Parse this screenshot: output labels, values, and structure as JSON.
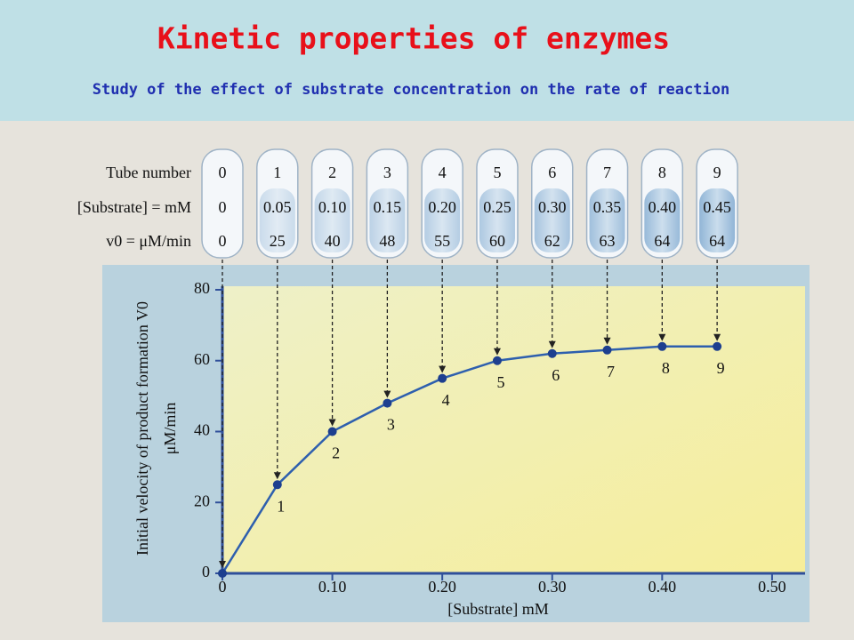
{
  "title": "Kinetic properties of enzymes",
  "subtitle": "Study of the effect of substrate concentration on the rate of reaction",
  "table": {
    "row_labels": [
      "Tube number",
      "[Substrate] = mM",
      "v0 = μM/min"
    ],
    "tube_numbers": [
      "0",
      "1",
      "2",
      "3",
      "4",
      "5",
      "6",
      "7",
      "8",
      "9"
    ],
    "substrate": [
      "0",
      "0.05",
      "0.10",
      "0.15",
      "0.20",
      "0.25",
      "0.30",
      "0.35",
      "0.40",
      "0.45"
    ],
    "velocity": [
      "0",
      "25",
      "40",
      "48",
      "55",
      "60",
      "62",
      "63",
      "64",
      "64"
    ]
  },
  "chart_data": {
    "type": "line",
    "x": [
      0,
      0.05,
      0.1,
      0.15,
      0.2,
      0.25,
      0.3,
      0.35,
      0.4,
      0.45
    ],
    "values": [
      0,
      25,
      40,
      48,
      55,
      60,
      62,
      63,
      64,
      64
    ],
    "color": "#2e5fae",
    "xlim": [
      0,
      0.53
    ],
    "ylim": [
      0,
      81
    ],
    "xticks": [
      {
        "value": 0,
        "label": "0"
      },
      {
        "value": 0.1,
        "label": "0.10"
      },
      {
        "value": 0.2,
        "label": "0.20"
      },
      {
        "value": 0.3,
        "label": "0.30"
      },
      {
        "value": 0.4,
        "label": "0.40"
      },
      {
        "value": 0.5,
        "label": "0.50"
      }
    ],
    "yticks": [
      0,
      20,
      40,
      60,
      80
    ],
    "x_label": "[Substrate] mM",
    "y_label": "Initial velocity of product formation V0",
    "y_label_unit": "μM/min"
  }
}
